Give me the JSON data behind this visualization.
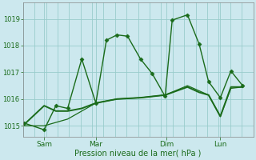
{
  "background_color": "#cce8ee",
  "grid_color": "#99cccc",
  "line_color": "#1a6b1a",
  "text_color": "#1a6b1a",
  "xlabel": "Pression niveau de la mer( hPa )",
  "ylim": [
    1014.6,
    1019.6
  ],
  "yticks": [
    1015,
    1016,
    1017,
    1018,
    1019
  ],
  "xlim": [
    0,
    9.8
  ],
  "xtick_positions": [
    0.9,
    3.1,
    6.1,
    8.4
  ],
  "xtick_labels": [
    "Sam",
    "Mar",
    "Dim",
    "Lun"
  ],
  "num_xgrid": 20,
  "series": [
    {
      "x": [
        0.05,
        0.9,
        1.4,
        1.9,
        2.5,
        3.1,
        3.55,
        4.0,
        4.45,
        5.0,
        5.5,
        6.05,
        6.35,
        7.0,
        7.5,
        7.9,
        8.4,
        8.85,
        9.35
      ],
      "y": [
        1015.1,
        1014.85,
        1015.75,
        1015.65,
        1017.5,
        1015.85,
        1018.2,
        1018.4,
        1018.35,
        1017.5,
        1016.95,
        1016.1,
        1018.95,
        1019.15,
        1018.05,
        1016.65,
        1016.05,
        1017.05,
        1016.5
      ],
      "marker": "D",
      "markersize": 2.5,
      "linewidth": 1.0,
      "linestyle": "-"
    },
    {
      "x": [
        0.05,
        0.9,
        1.4,
        1.9,
        2.5,
        3.1,
        4.0,
        5.0,
        6.05,
        7.0,
        7.5,
        7.9,
        8.4,
        8.85,
        9.35
      ],
      "y": [
        1015.05,
        1015.75,
        1015.55,
        1015.55,
        1015.65,
        1015.85,
        1016.0,
        1016.05,
        1016.15,
        1016.45,
        1016.25,
        1016.15,
        1015.35,
        1016.45,
        1016.45
      ],
      "marker": null,
      "markersize": 0,
      "linewidth": 1.4,
      "linestyle": "-"
    },
    {
      "x": [
        0.05,
        0.9,
        1.9,
        3.1,
        4.0,
        5.0,
        6.05,
        7.0,
        7.9,
        8.4,
        8.85,
        9.35
      ],
      "y": [
        1015.0,
        1015.0,
        1015.25,
        1015.85,
        1016.0,
        1016.05,
        1016.15,
        1016.5,
        1016.15,
        1015.35,
        1016.4,
        1016.45
      ],
      "marker": null,
      "markersize": 0,
      "linewidth": 0.9,
      "linestyle": "-"
    }
  ],
  "figsize": [
    3.2,
    2.0
  ],
  "dpi": 100
}
